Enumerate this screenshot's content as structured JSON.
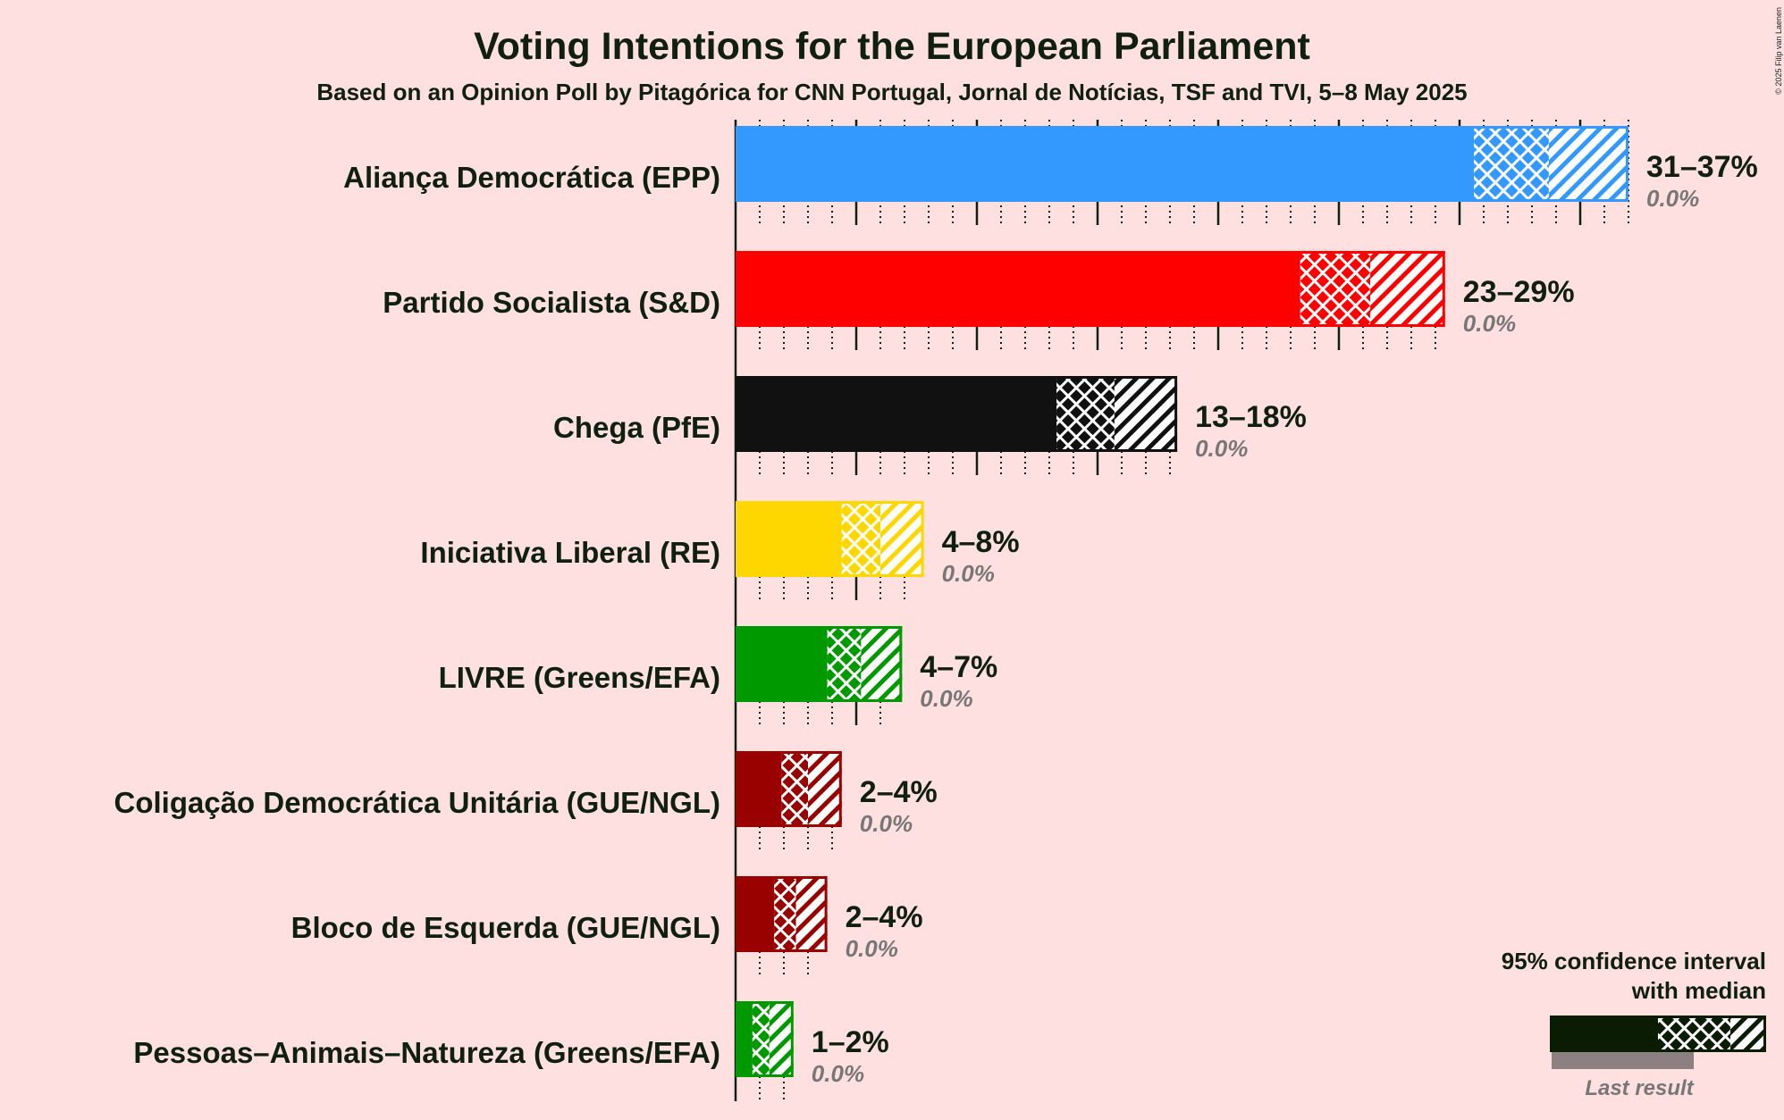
{
  "copyright": "© 2025 Filip van Laenen",
  "colors": {
    "background": "#FFE0E0",
    "text": "#0F200F",
    "muted_text": "#777777",
    "legend_bar": "#0B1C05",
    "last_result_bar": "#8C8080"
  },
  "chart_data": {
    "type": "bar",
    "orientation": "horizontal",
    "title": "Voting Intentions for the European Parliament",
    "subtitle": "Based on an Opinion Poll by Pitagórica for CNN Portugal, Jornal de Notícias, TSF and TVI, 5–8 May 2025",
    "xlabel": "",
    "ylabel": "",
    "xlim": [
      0,
      37
    ],
    "grid": true,
    "legend": {
      "position": "bottom-right",
      "line1": "95% confidence interval",
      "line2": "with median",
      "last_result": "Last result"
    },
    "parties": [
      {
        "name": "Aliança Democrática (EPP)",
        "color": "#3399FF",
        "ci_low": 30.6,
        "median": 33.7,
        "ci_high": 37.0,
        "range_label": "31–37%",
        "last_result": 0.0,
        "last_result_label": "0.0%"
      },
      {
        "name": "Partido Socialista (S&D)",
        "color": "#FF0000",
        "ci_low": 23.4,
        "median": 26.3,
        "ci_high": 29.4,
        "range_label": "23–29%",
        "last_result": 0.0,
        "last_result_label": "0.0%"
      },
      {
        "name": "Chega (PfE)",
        "color": "#111111",
        "ci_low": 13.3,
        "median": 15.7,
        "ci_high": 18.3,
        "range_label": "13–18%",
        "last_result": 0.0,
        "last_result_label": "0.0%"
      },
      {
        "name": "Iniciativa Liberal (RE)",
        "color": "#FFD700",
        "ci_low": 4.4,
        "median": 6.0,
        "ci_high": 7.8,
        "range_label": "4–8%",
        "last_result": 0.0,
        "last_result_label": "0.0%"
      },
      {
        "name": "LIVRE (Greens/EFA)",
        "color": "#009900",
        "ci_low": 3.8,
        "median": 5.2,
        "ci_high": 6.9,
        "range_label": "4–7%",
        "last_result": 0.0,
        "last_result_label": "0.0%"
      },
      {
        "name": "Coligação Democrática Unitária (GUE/NGL)",
        "color": "#990000",
        "ci_low": 1.9,
        "median": 3.0,
        "ci_high": 4.4,
        "range_label": "2–4%",
        "last_result": 0.0,
        "last_result_label": "0.0%"
      },
      {
        "name": "Bloco de Esquerda (GUE/NGL)",
        "color": "#990000",
        "ci_low": 1.6,
        "median": 2.5,
        "ci_high": 3.8,
        "range_label": "2–4%",
        "last_result": 0.0,
        "last_result_label": "0.0%"
      },
      {
        "name": "Pessoas–Animais–Natureza (Greens/EFA)",
        "color": "#009900",
        "ci_low": 0.7,
        "median": 1.4,
        "ci_high": 2.4,
        "range_label": "1–2%",
        "last_result": 0.0,
        "last_result_label": "0.0%"
      }
    ]
  }
}
